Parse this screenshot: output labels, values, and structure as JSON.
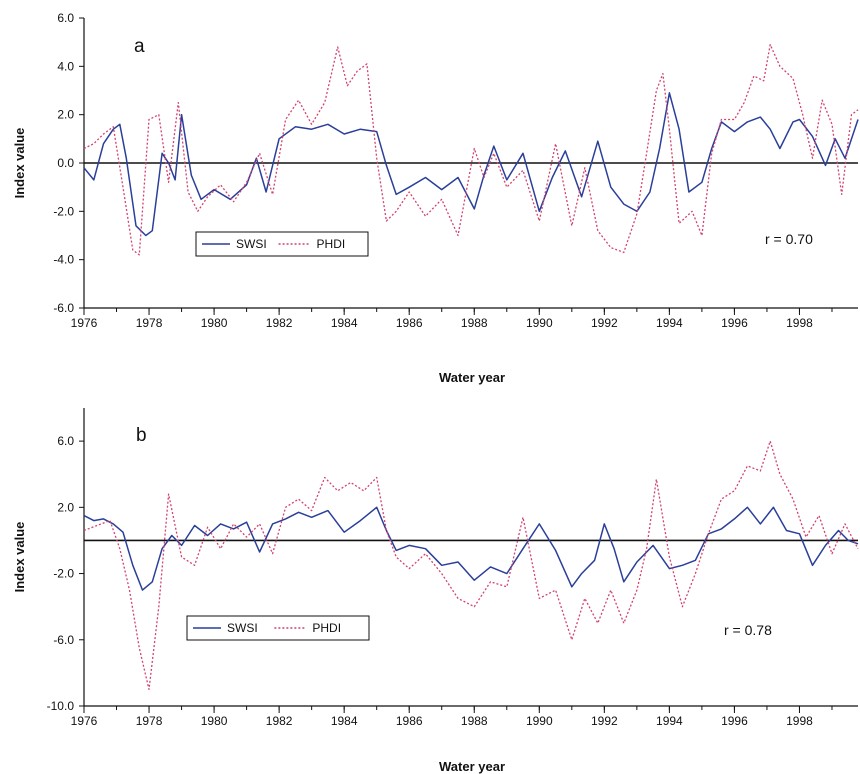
{
  "chart_data": [
    {
      "type": "line",
      "panel_label": "a",
      "xlabel": "Water year",
      "ylabel": "Index value",
      "xlim": [
        1976,
        1999.8
      ],
      "ylim": [
        -6,
        6
      ],
      "x_ticks": [
        1976,
        1978,
        1980,
        1982,
        1984,
        1986,
        1988,
        1990,
        1992,
        1994,
        1996,
        1998
      ],
      "x_tick_labels": [
        "1976",
        "1978",
        "1980",
        "1982",
        "1984",
        "1986",
        "1988",
        "1990",
        "1992",
        "1994",
        "1996",
        "1998"
      ],
      "y_ticks": [
        -6,
        -4,
        -2,
        0,
        2,
        4,
        6
      ],
      "y_tick_labels": [
        "-6.0",
        "-4.0",
        "-2.0",
        "0.0",
        "2.0",
        "4.0",
        "6.0"
      ],
      "zero_line": true,
      "grid": false,
      "legend_position": "lower-left",
      "annotation": "r = 0.70",
      "series": [
        {
          "name": "SWSI",
          "color": "#2a3f9a",
          "style": "solid",
          "x": [
            1976.0,
            1976.3,
            1976.6,
            1976.9,
            1977.1,
            1977.3,
            1977.6,
            1977.9,
            1978.1,
            1978.4,
            1978.6,
            1978.8,
            1979.0,
            1979.3,
            1979.6,
            1980.0,
            1980.5,
            1981.0,
            1981.3,
            1981.6,
            1982.0,
            1982.5,
            1983.0,
            1983.5,
            1984.0,
            1984.5,
            1985.0,
            1985.3,
            1985.6,
            1986.0,
            1986.5,
            1987.0,
            1987.5,
            1988.0,
            1988.3,
            1988.6,
            1989.0,
            1989.5,
            1990.0,
            1990.4,
            1990.8,
            1991.3,
            1991.8,
            1992.2,
            1992.6,
            1993.0,
            1993.4,
            1993.7,
            1994.0,
            1994.3,
            1994.6,
            1995.0,
            1995.3,
            1995.6,
            1996.0,
            1996.4,
            1996.8,
            1997.1,
            1997.4,
            1997.8,
            1998.0,
            1998.4,
            1998.8,
            1999.1,
            1999.4,
            1999.8
          ],
          "y": [
            -0.2,
            -0.7,
            0.8,
            1.4,
            1.6,
            0.2,
            -2.6,
            -3.0,
            -2.8,
            0.4,
            0.0,
            -0.7,
            2.0,
            -0.5,
            -1.5,
            -1.1,
            -1.5,
            -0.9,
            0.2,
            -1.2,
            1.0,
            1.5,
            1.4,
            1.6,
            1.2,
            1.4,
            1.3,
            -0.1,
            -1.3,
            -1.0,
            -0.6,
            -1.1,
            -0.6,
            -1.9,
            -0.5,
            0.7,
            -0.7,
            0.4,
            -2.0,
            -0.6,
            0.5,
            -1.4,
            0.9,
            -1.0,
            -1.7,
            -2.0,
            -1.2,
            0.6,
            2.9,
            1.4,
            -1.2,
            -0.8,
            0.6,
            1.7,
            1.3,
            1.7,
            1.9,
            1.4,
            0.6,
            1.7,
            1.8,
            1.1,
            -0.1,
            1.0,
            0.2,
            1.8
          ]
        },
        {
          "name": "PHDI",
          "color": "#d2436e",
          "style": "dotted",
          "x": [
            1976.0,
            1976.3,
            1976.6,
            1976.9,
            1977.2,
            1977.5,
            1977.7,
            1978.0,
            1978.3,
            1978.6,
            1978.9,
            1979.2,
            1979.5,
            1979.8,
            1980.2,
            1980.6,
            1981.0,
            1981.4,
            1981.8,
            1982.2,
            1982.6,
            1983.0,
            1983.4,
            1983.8,
            1984.1,
            1984.4,
            1984.7,
            1985.0,
            1985.3,
            1985.6,
            1986.0,
            1986.5,
            1987.0,
            1987.5,
            1988.0,
            1988.3,
            1988.6,
            1989.0,
            1989.5,
            1990.0,
            1990.5,
            1991.0,
            1991.4,
            1991.8,
            1992.2,
            1992.6,
            1993.0,
            1993.3,
            1993.6,
            1993.8,
            1994.0,
            1994.3,
            1994.7,
            1995.0,
            1995.3,
            1995.6,
            1996.0,
            1996.3,
            1996.6,
            1996.9,
            1997.1,
            1997.4,
            1997.8,
            1998.1,
            1998.4,
            1998.7,
            1999.0,
            1999.3,
            1999.6,
            1999.8
          ],
          "y": [
            0.6,
            0.8,
            1.2,
            1.5,
            -1.0,
            -3.6,
            -3.8,
            1.8,
            2.0,
            -0.8,
            2.5,
            -1.2,
            -2.0,
            -1.4,
            -0.9,
            -1.6,
            -0.8,
            0.4,
            -1.3,
            1.8,
            2.6,
            1.6,
            2.5,
            4.8,
            3.2,
            3.8,
            4.1,
            0.2,
            -2.4,
            -2.0,
            -1.2,
            -2.2,
            -1.5,
            -3.0,
            0.6,
            -0.6,
            0.4,
            -1.0,
            -0.3,
            -2.4,
            0.8,
            -2.6,
            -0.2,
            -2.8,
            -3.5,
            -3.7,
            -2.1,
            0.4,
            3.0,
            3.7,
            1.4,
            -2.5,
            -2.0,
            -3.0,
            0.4,
            1.8,
            1.8,
            2.5,
            3.6,
            3.4,
            4.9,
            4.0,
            3.5,
            2.0,
            0.2,
            2.6,
            1.6,
            -1.3,
            2.0,
            2.2
          ]
        }
      ]
    },
    {
      "type": "line",
      "panel_label": "b",
      "xlabel": "Water year",
      "ylabel": "Index value",
      "xlim": [
        1976,
        1999.8
      ],
      "ylim": [
        -10,
        8
      ],
      "x_ticks": [
        1976,
        1978,
        1980,
        1982,
        1984,
        1986,
        1988,
        1990,
        1992,
        1994,
        1996,
        1998
      ],
      "x_tick_labels": [
        "1976",
        "1978",
        "1980",
        "1982",
        "1984",
        "1986",
        "1988",
        "1990",
        "1992",
        "1994",
        "1996",
        "1998"
      ],
      "y_ticks": [
        -10,
        -6,
        -2,
        2,
        6
      ],
      "y_tick_labels": [
        "-10.0",
        "-6.0",
        "-2.0",
        "2.0",
        "6.0"
      ],
      "zero_line": true,
      "grid": false,
      "legend_position": "lower-left",
      "annotation": "r = 0.78",
      "series": [
        {
          "name": "SWSI",
          "color": "#2a3f9a",
          "style": "solid",
          "x": [
            1976.0,
            1976.3,
            1976.6,
            1976.9,
            1977.2,
            1977.5,
            1977.8,
            1978.1,
            1978.4,
            1978.7,
            1979.0,
            1979.4,
            1979.8,
            1980.2,
            1980.6,
            1981.0,
            1981.4,
            1981.8,
            1982.2,
            1982.6,
            1983.0,
            1983.5,
            1984.0,
            1984.5,
            1985.0,
            1985.3,
            1985.6,
            1986.0,
            1986.5,
            1987.0,
            1987.5,
            1988.0,
            1988.5,
            1989.0,
            1989.5,
            1990.0,
            1990.5,
            1991.0,
            1991.3,
            1991.7,
            1992.0,
            1992.3,
            1992.6,
            1993.0,
            1993.5,
            1994.0,
            1994.4,
            1994.8,
            1995.2,
            1995.6,
            1996.0,
            1996.4,
            1996.8,
            1997.2,
            1997.6,
            1998.0,
            1998.4,
            1998.8,
            1999.2,
            1999.5,
            1999.8
          ],
          "y": [
            1.5,
            1.2,
            1.3,
            1.0,
            0.5,
            -1.5,
            -3.0,
            -2.5,
            -0.5,
            0.3,
            -0.3,
            0.9,
            0.3,
            1.0,
            0.7,
            1.1,
            -0.7,
            1.0,
            1.3,
            1.7,
            1.4,
            1.8,
            0.5,
            1.2,
            2.0,
            0.6,
            -0.6,
            -0.3,
            -0.5,
            -1.5,
            -1.3,
            -2.4,
            -1.6,
            -2.0,
            -0.5,
            1.0,
            -0.6,
            -2.8,
            -2.0,
            -1.2,
            1.0,
            -0.5,
            -2.5,
            -1.3,
            -0.3,
            -1.7,
            -1.5,
            -1.2,
            0.4,
            0.7,
            1.3,
            2.0,
            1.0,
            2.0,
            0.6,
            0.4,
            -1.5,
            -0.3,
            0.6,
            0.0,
            -0.2
          ]
        },
        {
          "name": "PHDI",
          "color": "#d2436e",
          "style": "dotted",
          "x": [
            1976.0,
            1976.4,
            1976.8,
            1977.1,
            1977.4,
            1977.7,
            1978.0,
            1978.3,
            1978.6,
            1979.0,
            1979.4,
            1979.8,
            1980.2,
            1980.6,
            1981.0,
            1981.4,
            1981.8,
            1982.2,
            1982.6,
            1983.0,
            1983.4,
            1983.8,
            1984.2,
            1984.6,
            1985.0,
            1985.3,
            1985.6,
            1986.0,
            1986.5,
            1987.0,
            1987.5,
            1988.0,
            1988.5,
            1989.0,
            1989.5,
            1990.0,
            1990.5,
            1991.0,
            1991.4,
            1991.8,
            1992.2,
            1992.6,
            1993.0,
            1993.3,
            1993.6,
            1994.0,
            1994.4,
            1994.8,
            1995.2,
            1995.6,
            1996.0,
            1996.4,
            1996.8,
            1997.1,
            1997.4,
            1997.8,
            1998.2,
            1998.6,
            1999.0,
            1999.4,
            1999.8
          ],
          "y": [
            0.6,
            0.9,
            1.2,
            -0.5,
            -3.0,
            -6.5,
            -9.0,
            -4.0,
            2.8,
            -1.0,
            -1.5,
            0.8,
            -0.5,
            1.0,
            0.2,
            1.0,
            -0.8,
            2.0,
            2.5,
            1.8,
            3.8,
            3.0,
            3.5,
            3.0,
            3.8,
            0.6,
            -1.0,
            -1.7,
            -0.8,
            -2.0,
            -3.5,
            -4.0,
            -2.5,
            -2.8,
            1.4,
            -3.5,
            -3.0,
            -6.0,
            -3.5,
            -5.0,
            -3.0,
            -5.0,
            -3.0,
            -0.5,
            3.7,
            -1.0,
            -4.0,
            -2.0,
            0.4,
            2.5,
            3.0,
            4.5,
            4.2,
            6.0,
            4.0,
            2.5,
            0.2,
            1.5,
            -0.8,
            1.0,
            -0.5
          ]
        }
      ]
    }
  ]
}
